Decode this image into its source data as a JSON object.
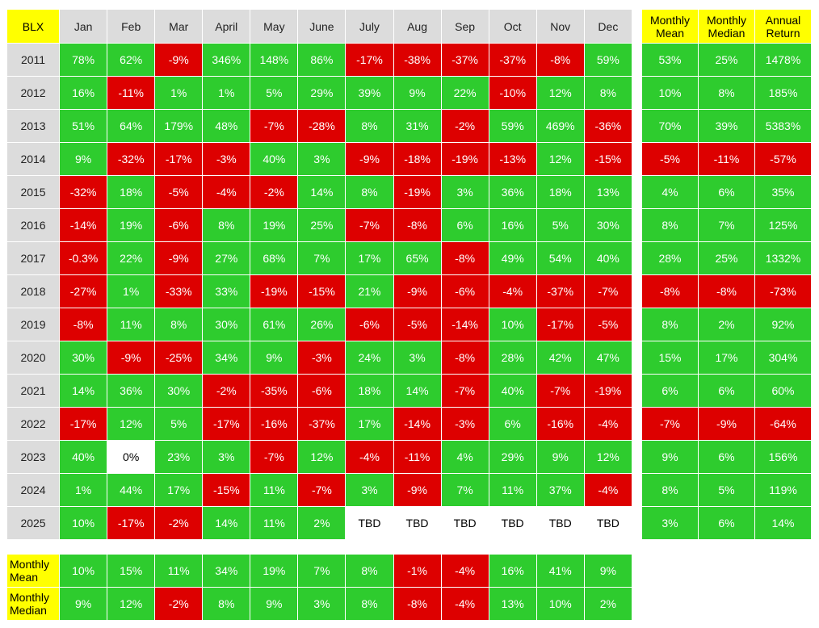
{
  "chart_data": {
    "type": "table",
    "ticker": "BLX",
    "months": [
      "Jan",
      "Feb",
      "Mar",
      "April",
      "May",
      "June",
      "July",
      "Aug",
      "Sep",
      "Oct",
      "Nov",
      "Dec"
    ],
    "summary_headers": [
      "Monthly Mean",
      "Monthly Median",
      "Annual Return"
    ],
    "rows": [
      {
        "year": "2011",
        "values": [
          "78%",
          "62%",
          "-9%",
          "346%",
          "148%",
          "86%",
          "-17%",
          "-38%",
          "-37%",
          "-37%",
          "-8%",
          "59%"
        ],
        "summary": [
          "53%",
          "25%",
          "1478%"
        ]
      },
      {
        "year": "2012",
        "values": [
          "16%",
          "-11%",
          "1%",
          "1%",
          "5%",
          "29%",
          "39%",
          "9%",
          "22%",
          "-10%",
          "12%",
          "8%"
        ],
        "summary": [
          "10%",
          "8%",
          "185%"
        ]
      },
      {
        "year": "2013",
        "values": [
          "51%",
          "64%",
          "179%",
          "48%",
          "-7%",
          "-28%",
          "8%",
          "31%",
          "-2%",
          "59%",
          "469%",
          "-36%"
        ],
        "summary": [
          "70%",
          "39%",
          "5383%"
        ]
      },
      {
        "year": "2014",
        "values": [
          "9%",
          "-32%",
          "-17%",
          "-3%",
          "40%",
          "3%",
          "-9%",
          "-18%",
          "-19%",
          "-13%",
          "12%",
          "-15%"
        ],
        "summary": [
          "-5%",
          "-11%",
          "-57%"
        ]
      },
      {
        "year": "2015",
        "values": [
          "-32%",
          "18%",
          "-5%",
          "-4%",
          "-2%",
          "14%",
          "8%",
          "-19%",
          "3%",
          "36%",
          "18%",
          "13%"
        ],
        "summary": [
          "4%",
          "6%",
          "35%"
        ]
      },
      {
        "year": "2016",
        "values": [
          "-14%",
          "19%",
          "-6%",
          "8%",
          "19%",
          "25%",
          "-7%",
          "-8%",
          "6%",
          "16%",
          "5%",
          "30%"
        ],
        "summary": [
          "8%",
          "7%",
          "125%"
        ]
      },
      {
        "year": "2017",
        "values": [
          "-0.3%",
          "22%",
          "-9%",
          "27%",
          "68%",
          "7%",
          "17%",
          "65%",
          "-8%",
          "49%",
          "54%",
          "40%"
        ],
        "summary": [
          "28%",
          "25%",
          "1332%"
        ]
      },
      {
        "year": "2018",
        "values": [
          "-27%",
          "1%",
          "-33%",
          "33%",
          "-19%",
          "-15%",
          "21%",
          "-9%",
          "-6%",
          "-4%",
          "-37%",
          "-7%"
        ],
        "summary": [
          "-8%",
          "-8%",
          "-73%"
        ]
      },
      {
        "year": "2019",
        "values": [
          "-8%",
          "11%",
          "8%",
          "30%",
          "61%",
          "26%",
          "-6%",
          "-5%",
          "-14%",
          "10%",
          "-17%",
          "-5%"
        ],
        "summary": [
          "8%",
          "2%",
          "92%"
        ]
      },
      {
        "year": "2020",
        "values": [
          "30%",
          "-9%",
          "-25%",
          "34%",
          "9%",
          "-3%",
          "24%",
          "3%",
          "-8%",
          "28%",
          "42%",
          "47%"
        ],
        "summary": [
          "15%",
          "17%",
          "304%"
        ]
      },
      {
        "year": "2021",
        "values": [
          "14%",
          "36%",
          "30%",
          "-2%",
          "-35%",
          "-6%",
          "18%",
          "14%",
          "-7%",
          "40%",
          "-7%",
          "-19%"
        ],
        "summary": [
          "6%",
          "6%",
          "60%"
        ]
      },
      {
        "year": "2022",
        "values": [
          "-17%",
          "12%",
          "5%",
          "-17%",
          "-16%",
          "-37%",
          "17%",
          "-14%",
          "-3%",
          "6%",
          "-16%",
          "-4%"
        ],
        "summary": [
          "-7%",
          "-9%",
          "-64%"
        ]
      },
      {
        "year": "2023",
        "values": [
          "40%",
          "0%",
          "23%",
          "3%",
          "-7%",
          "12%",
          "-4%",
          "-11%",
          "4%",
          "29%",
          "9%",
          "12%"
        ],
        "summary": [
          "9%",
          "6%",
          "156%"
        ]
      },
      {
        "year": "2024",
        "values": [
          "1%",
          "44%",
          "17%",
          "-15%",
          "11%",
          "-7%",
          "3%",
          "-9%",
          "7%",
          "11%",
          "37%",
          "-4%"
        ],
        "summary": [
          "8%",
          "5%",
          "119%"
        ]
      },
      {
        "year": "2025",
        "values": [
          "10%",
          "-17%",
          "-2%",
          "14%",
          "11%",
          "2%",
          "TBD",
          "TBD",
          "TBD",
          "TBD",
          "TBD",
          "TBD"
        ],
        "summary": [
          "3%",
          "6%",
          "14%"
        ]
      }
    ],
    "bottom_rows": [
      {
        "label": "Monthly Mean",
        "values": [
          "10%",
          "15%",
          "11%",
          "34%",
          "19%",
          "7%",
          "8%",
          "-1%",
          "-4%",
          "16%",
          "41%",
          "9%"
        ]
      },
      {
        "label": "Monthly Median",
        "values": [
          "9%",
          "12%",
          "-2%",
          "8%",
          "9%",
          "3%",
          "8%",
          "-8%",
          "-4%",
          "13%",
          "10%",
          "2%"
        ]
      }
    ],
    "colors": {
      "positive": "#2ecc2e",
      "negative": "#dd0000",
      "neutral": "#ffffff",
      "header_yellow": "#ffff00",
      "header_gray": "#dcdcdc"
    }
  }
}
